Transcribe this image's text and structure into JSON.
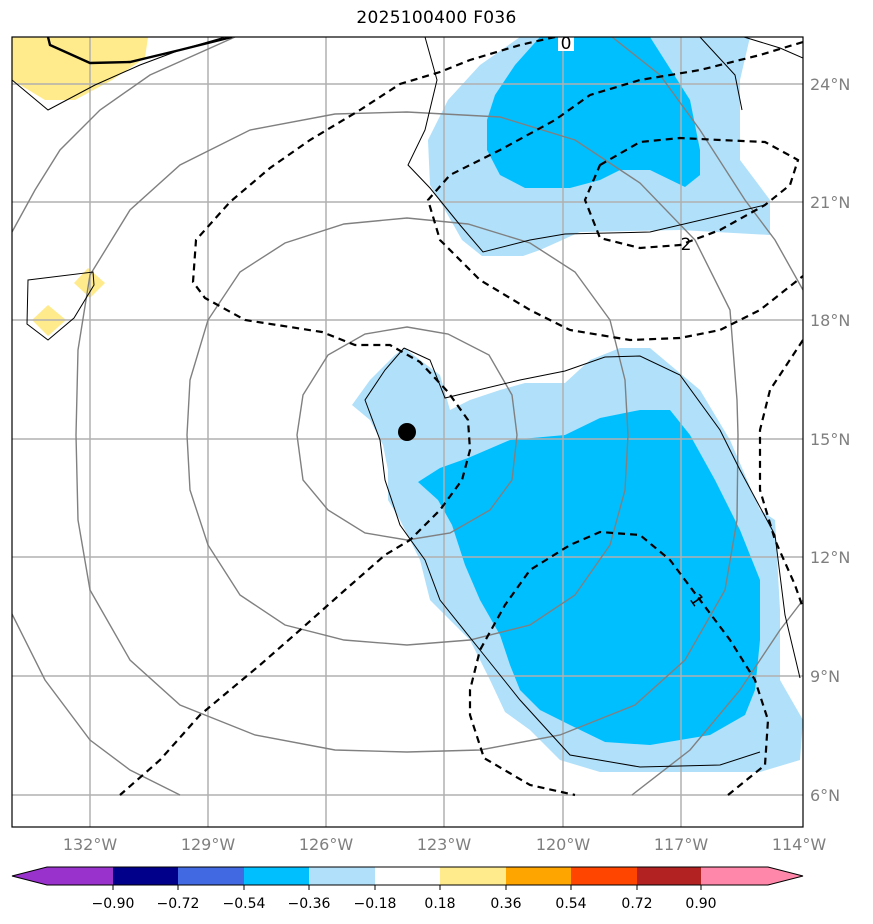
{
  "title": "2025100400 F036",
  "map": {
    "lon_range": [
      -134,
      -114
    ],
    "lat_range": [
      5,
      25
    ],
    "lon_ticks": [
      "132°W",
      "129°W",
      "126°W",
      "123°W",
      "120°W",
      "117°W",
      "114°W"
    ],
    "lat_ticks": [
      "24°N",
      "21°N",
      "18°N",
      "15°N",
      "12°N",
      "9°N",
      "6°N"
    ],
    "grid_color": "#b0b0b0",
    "storm_center": {
      "lon": -124,
      "lat": 15.2,
      "marker": "black-dot"
    },
    "contour_labels": [
      "0",
      "2",
      "1"
    ],
    "colors": {
      "light_blue": "#b0e0fa",
      "deep_sky_blue": "#00bfff",
      "light_yellow": "#ffeb8c",
      "contour": "#000000",
      "range_rings": "#808080"
    }
  },
  "colorbar": {
    "ticks": [
      "−0.90",
      "−0.72",
      "−0.54",
      "−0.36",
      "−0.18",
      "0.18",
      "0.36",
      "0.54",
      "0.72",
      "0.90"
    ],
    "colors": [
      "#9932cc",
      "#00008b",
      "#4169e1",
      "#00bfff",
      "#b0e0fa",
      "#ffffff",
      "#ffeb8c",
      "#ffa500",
      "#ff4500",
      "#b22222",
      "#ff88aa"
    ]
  }
}
